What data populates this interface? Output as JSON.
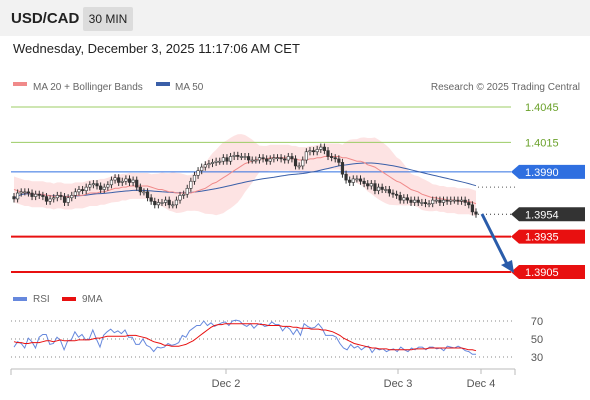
{
  "header": {
    "symbol": "USD/CAD",
    "timeframe": "30 MIN",
    "datetime": "Wednesday, December 3, 2025 11:17:06 AM CET"
  },
  "legend": {
    "ma20_label": "MA 20 + Bollinger Bands",
    "ma50_label": "MA 50",
    "credit": "Research © 2025 Trading Central",
    "rsi_label": "RSI",
    "rsi_ma_label": "9MA"
  },
  "colors": {
    "ma20": "#f08a8a",
    "ma50": "#3a5fa8",
    "bollinger_fill": "#fde3e3",
    "candle": "#333333",
    "resistance": "#9ccc65",
    "pivot": "#2f6fe0",
    "support": "#e81010",
    "last_price": "#333333",
    "rsi": "#6688dd",
    "rsi_ma": "#e81010",
    "arrow": "#2a5caa"
  },
  "chart_data": [
    {
      "type": "candlestick",
      "title": "USD/CAD 30 MIN",
      "x_ticks": [
        "Dec 2",
        "Dec 3",
        "Dec 4"
      ],
      "y_visible_range": [
        1.3885,
        1.4055
      ],
      "levels": [
        {
          "value": 1.4045,
          "label": "1.4045",
          "kind": "resistance"
        },
        {
          "value": 1.4015,
          "label": "1.4015",
          "kind": "resistance"
        },
        {
          "value": 1.399,
          "label": "1.3990",
          "kind": "pivot"
        },
        {
          "value": 1.3954,
          "label": "1.3954",
          "kind": "last"
        },
        {
          "value": 1.3935,
          "label": "1.3935",
          "kind": "support"
        },
        {
          "value": 1.3905,
          "label": "1.3905",
          "kind": "support"
        }
      ],
      "close_series": [
        1.3967,
        1.3972,
        1.3973,
        1.3973,
        1.3972,
        1.3969,
        1.3971,
        1.397,
        1.3969,
        1.3965,
        1.3967,
        1.3968,
        1.397,
        1.3969,
        1.3964,
        1.3968,
        1.397,
        1.3973,
        1.3975,
        1.3974,
        1.3977,
        1.3979,
        1.398,
        1.3978,
        1.3975,
        1.3977,
        1.3979,
        1.3983,
        1.3985,
        1.3981,
        1.3982,
        1.3984,
        1.3981,
        1.3983,
        1.3977,
        1.3973,
        1.3973,
        1.3968,
        1.3965,
        1.3962,
        1.3964,
        1.3964,
        1.3966,
        1.3962,
        1.3962,
        1.3966,
        1.397,
        1.3971,
        1.3976,
        1.3982,
        1.3987,
        1.3991,
        1.3994,
        1.3996,
        1.3997,
        1.3998,
        1.3999,
        1.3999,
        1.4002,
        1.3999,
        1.4003,
        1.4004,
        1.4003,
        1.4003,
        1.4003,
        1.4,
        1.4,
        1.4,
        1.4002,
        1.4001,
        1.3999,
        1.4001,
        1.4002,
        1.4002,
        1.4001,
        1.4,
        1.4003,
        1.4001,
        1.3995,
        1.3995,
        1.4,
        1.4007,
        1.4008,
        1.4007,
        1.4009,
        1.4011,
        1.4008,
        1.4003,
        1.4002,
        1.4001,
        1.3998,
        1.3988,
        1.3983,
        1.3981,
        1.3984,
        1.3984,
        1.3982,
        1.398,
        1.3978,
        1.398,
        1.3974,
        1.3977,
        1.3975,
        1.3975,
        1.3972,
        1.3971,
        1.397,
        1.3966,
        1.3968,
        1.3966,
        1.3964,
        1.3966,
        1.3964,
        1.3964,
        1.3963,
        1.3963,
        1.3966,
        1.3966,
        1.3964,
        1.3966,
        1.3965,
        1.3966,
        1.3966,
        1.3965,
        1.3966,
        1.3964,
        1.3962,
        1.3956,
        1.3954
      ],
      "ma20": [
        1.3975,
        1.3974,
        1.3973,
        1.3972,
        1.3972,
        1.3971,
        1.3971,
        1.3971,
        1.3971,
        1.397,
        1.397,
        1.3969,
        1.397,
        1.397,
        1.3969,
        1.3969,
        1.3969,
        1.397,
        1.397,
        1.397,
        1.3971,
        1.3972,
        1.3972,
        1.3972,
        1.3973,
        1.3973,
        1.3974,
        1.3975,
        1.3976,
        1.3976,
        1.3977,
        1.3977,
        1.3978,
        1.3978,
        1.3978,
        1.3978,
        1.3978,
        1.3978,
        1.3977,
        1.3976,
        1.3975,
        1.3975,
        1.3974,
        1.3973,
        1.3973,
        1.3972,
        1.3972,
        1.3972,
        1.3972,
        1.3972,
        1.3973,
        1.3974,
        1.3975,
        1.3976,
        1.3978,
        1.398,
        1.3981,
        1.3983,
        1.3985,
        1.3987,
        1.3989,
        1.3991,
        1.3993,
        1.3995,
        1.3997,
        1.3998,
        1.3999,
        1.4,
        1.4001,
        1.4001,
        1.4001,
        1.4002,
        1.4002,
        1.4002,
        1.4002,
        1.4002,
        1.4002,
        1.4001,
        1.4001,
        1.4,
        1.4,
        1.4,
        1.4001,
        1.4001,
        1.4002,
        1.4002,
        1.4003,
        1.4003,
        1.4003,
        1.4003,
        1.4003,
        1.4002,
        1.4002,
        1.4001,
        1.4,
        1.3999,
        1.3999,
        1.3998,
        1.3996,
        1.3995,
        1.3994,
        1.3992,
        1.399,
        1.3988,
        1.3986,
        1.3984,
        1.3982,
        1.3981,
        1.3979,
        1.3977,
        1.3975,
        1.3974,
        1.3973,
        1.3971,
        1.397,
        1.3969,
        1.3968,
        1.3968,
        1.3967,
        1.3967,
        1.3966,
        1.3966,
        1.3966,
        1.3965,
        1.3965,
        1.3965,
        1.3965,
        1.3964,
        1.3963
      ]
    },
    {
      "type": "line",
      "title": "RSI",
      "y_ticks": [
        70,
        50,
        30
      ],
      "ylim": [
        25,
        75
      ],
      "series": [
        {
          "name": "RSI",
          "values": [
            41,
            47,
            45,
            40,
            51,
            47,
            40,
            52,
            55,
            55,
            44,
            45,
            52,
            48,
            38,
            48,
            49,
            58,
            52,
            55,
            49,
            50,
            60,
            50,
            41,
            54,
            58,
            61,
            57,
            59,
            56,
            60,
            52,
            52,
            44,
            44,
            50,
            43,
            41,
            36,
            41,
            40,
            41,
            45,
            43,
            44,
            46,
            54,
            52,
            59,
            62,
            65,
            65,
            70,
            65,
            68,
            64,
            66,
            68,
            69,
            65,
            70,
            71,
            70,
            66,
            64,
            67,
            62,
            66,
            67,
            64,
            65,
            69,
            66,
            66,
            59,
            64,
            61,
            55,
            61,
            54,
            67,
            64,
            62,
            63,
            67,
            62,
            54,
            54,
            54,
            52,
            45,
            40,
            38,
            44,
            40,
            42,
            38,
            41,
            42,
            35,
            40,
            38,
            39,
            36,
            38,
            39,
            36,
            41,
            38,
            36,
            40,
            38,
            41,
            41,
            38,
            41,
            41,
            39,
            40,
            37,
            42,
            41,
            40,
            42,
            40,
            37,
            36,
            33,
            33
          ]
        },
        {
          "name": "9MA",
          "values": [
            47,
            46,
            46,
            45,
            45,
            46,
            46,
            46,
            47,
            48,
            48,
            47,
            48,
            49,
            48,
            48,
            48,
            48,
            49,
            49,
            49,
            49,
            50,
            51,
            51,
            52,
            53,
            53,
            53,
            53,
            53,
            53,
            54,
            54,
            54,
            53,
            52,
            51,
            49,
            47,
            46,
            45,
            43,
            43,
            42,
            42,
            42,
            43,
            44,
            46,
            48,
            51,
            54,
            57,
            60,
            63,
            65,
            66,
            66,
            67,
            67,
            67,
            67,
            67,
            67,
            67,
            67,
            67,
            67,
            66,
            66,
            65,
            65,
            65,
            65,
            64,
            64,
            64,
            63,
            63,
            62,
            62,
            62,
            61,
            61,
            61,
            60,
            60,
            59,
            58,
            56,
            54,
            51,
            49,
            47,
            45,
            44,
            43,
            42,
            41,
            40,
            40,
            39,
            39,
            39,
            38,
            38,
            38,
            38,
            38,
            38,
            38,
            39,
            39,
            39,
            39,
            40,
            40,
            40,
            40,
            40,
            40,
            40,
            40,
            40,
            40,
            39,
            38,
            38,
            37
          ]
        }
      ]
    }
  ]
}
